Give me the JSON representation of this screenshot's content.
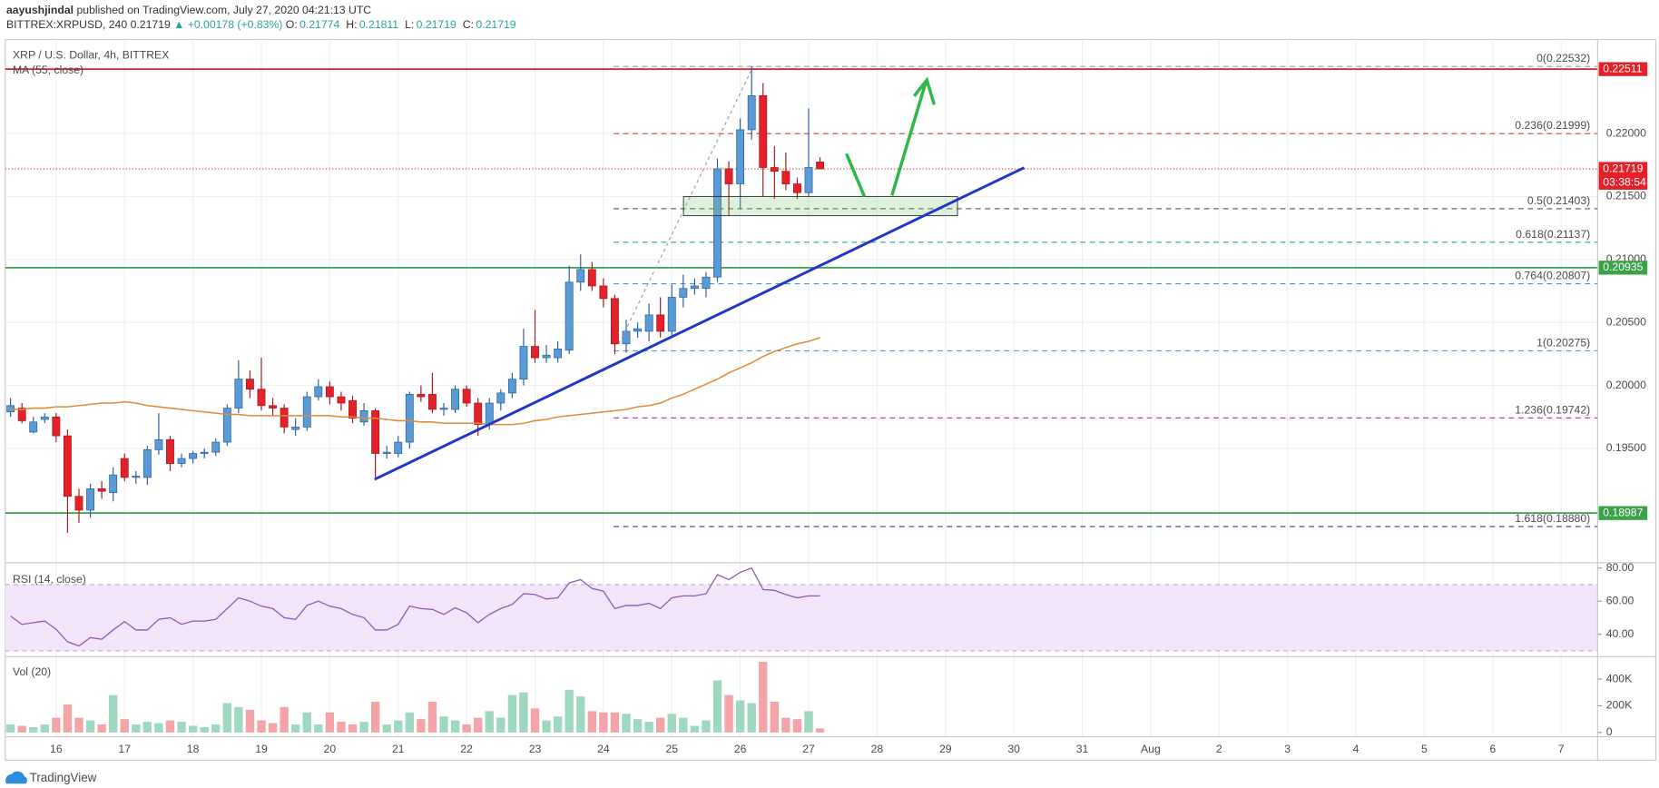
{
  "header": {
    "author": "aayushjindal",
    "published": "published on TradingView.com, July 27, 2020 04:21:13 UTC",
    "symbol": "BITTREX:XRPUSD, 240",
    "last": "0.21719",
    "change": "▲ +0.00178 (+0.83%)",
    "ohlc": [
      [
        "O:",
        "0.21774"
      ],
      [
        "H:",
        "0.21811"
      ],
      [
        "L:",
        "0.21719"
      ],
      [
        "C:",
        "0.21719"
      ]
    ]
  },
  "footer": {
    "brand": "TradingView"
  },
  "chart_data": [
    {
      "type": "candlestick",
      "title": "XRP / U.S. Dollar, 4h, BITTREX",
      "up_color": "#5b9bd5",
      "up_border": "#2a5d9b",
      "down_color": "#e4212b",
      "down_border": "#a5161d",
      "xlim": [
        -0.46,
        139.2
      ],
      "xticks": [
        {
          "value": 4,
          "label": "16"
        },
        {
          "value": 10,
          "label": "17"
        },
        {
          "value": 16,
          "label": "18"
        },
        {
          "value": 22,
          "label": "19"
        },
        {
          "value": 28,
          "label": "20"
        },
        {
          "value": 34,
          "label": "21"
        },
        {
          "value": 40,
          "label": "22"
        },
        {
          "value": 46,
          "label": "23"
        },
        {
          "value": 52,
          "label": "24"
        },
        {
          "value": 58,
          "label": "25"
        },
        {
          "value": 64,
          "label": "26"
        },
        {
          "value": 70,
          "label": "27"
        },
        {
          "value": 76,
          "label": "28"
        },
        {
          "value": 82,
          "label": "29"
        },
        {
          "value": 88,
          "label": "30"
        },
        {
          "value": 94,
          "label": "31"
        },
        {
          "value": 100,
          "label": "Aug"
        },
        {
          "value": 106,
          "label": "2"
        },
        {
          "value": 112,
          "label": "3"
        },
        {
          "value": 118,
          "label": "4"
        },
        {
          "value": 124,
          "label": "5"
        },
        {
          "value": 130,
          "label": "6"
        },
        {
          "value": 136,
          "label": "7"
        }
      ],
      "ylim": [
        0.18593,
        0.22746
      ],
      "yticks": [
        {
          "value": 0.195,
          "label": "0.19500"
        },
        {
          "value": 0.2,
          "label": "0.20000"
        },
        {
          "value": 0.205,
          "label": "0.20500"
        },
        {
          "value": 0.21,
          "label": "0.21000"
        },
        {
          "value": 0.215,
          "label": "0.21500"
        },
        {
          "value": 0.22,
          "label": "0.22000"
        }
      ],
      "grid": true,
      "open": [
        0.1979,
        0.1982,
        0.1963,
        0.1973,
        0.1975,
        0.196,
        0.1912,
        0.1901,
        0.1918,
        0.1915,
        0.1942,
        0.1927,
        0.1927,
        0.1949,
        0.1957,
        0.1938,
        0.1942,
        0.1946,
        0.1947,
        0.1955,
        0.1982,
        0.2005,
        0.1997,
        0.1984,
        0.1982,
        0.1965,
        0.1967,
        0.1991,
        0.1999,
        0.1991,
        0.1988,
        0.1971,
        0.198,
        0.1946,
        0.1946,
        0.1955,
        0.1993,
        0.1993,
        0.1981,
        0.1981,
        0.1997,
        0.1986,
        0.1969,
        0.1986,
        0.1994,
        0.2005,
        0.2031,
        0.2022,
        0.2022,
        0.2028,
        0.2082,
        0.2092,
        0.2079,
        0.2069,
        0.2033,
        0.2043,
        0.2043,
        0.2056,
        0.2043,
        0.207,
        0.2077,
        0.2077,
        0.2086,
        0.2172,
        0.216,
        0.2203,
        0.223,
        0.2173,
        0.217,
        0.216,
        0.2153,
        0.21774
      ],
      "high": [
        0.199,
        0.1986,
        0.1975,
        0.1978,
        0.1978,
        0.1965,
        0.1918,
        0.1922,
        0.1924,
        0.1935,
        0.1946,
        0.1932,
        0.1952,
        0.1978,
        0.196,
        0.1946,
        0.1948,
        0.195,
        0.1958,
        0.1985,
        0.202,
        0.2012,
        0.2022,
        0.199,
        0.1985,
        0.1974,
        0.1995,
        0.2005,
        0.2003,
        0.1995,
        0.1992,
        0.1986,
        0.1982,
        0.1952,
        0.196,
        0.1995,
        0.2,
        0.201,
        0.1986,
        0.2,
        0.2,
        0.199,
        0.199,
        0.1997,
        0.201,
        0.2045,
        0.206,
        0.2032,
        0.2035,
        0.2095,
        0.2104,
        0.2098,
        0.2085,
        0.2072,
        0.2052,
        0.205,
        0.2065,
        0.207,
        0.208,
        0.2088,
        0.2085,
        0.209,
        0.218,
        0.2178,
        0.2212,
        0.2253,
        0.224,
        0.219,
        0.2185,
        0.2165,
        0.222,
        0.21811
      ],
      "low": [
        0.1975,
        0.197,
        0.1962,
        0.197,
        0.1955,
        0.1883,
        0.1891,
        0.1895,
        0.191,
        0.1908,
        0.1924,
        0.1922,
        0.1921,
        0.1945,
        0.1932,
        0.1935,
        0.1938,
        0.1942,
        0.1944,
        0.1952,
        0.1978,
        0.199,
        0.198,
        0.1976,
        0.1962,
        0.196,
        0.1964,
        0.1988,
        0.1985,
        0.198,
        0.197,
        0.1968,
        0.1927,
        0.1942,
        0.1943,
        0.195,
        0.1987,
        0.1978,
        0.1976,
        0.1978,
        0.1983,
        0.196,
        0.1965,
        0.198,
        0.199,
        0.2,
        0.2018,
        0.2018,
        0.2018,
        0.2025,
        0.2075,
        0.2075,
        0.2062,
        0.2025,
        0.2026,
        0.2038,
        0.2035,
        0.2038,
        0.204,
        0.2062,
        0.2072,
        0.207,
        0.2082,
        0.2135,
        0.214,
        0.2195,
        0.215,
        0.2148,
        0.2155,
        0.2148,
        0.215,
        0.21719
      ],
      "close": [
        0.1984,
        0.1972,
        0.1971,
        0.1975,
        0.196,
        0.1912,
        0.1901,
        0.1918,
        0.1916,
        0.1929,
        0.1927,
        0.1928,
        0.1949,
        0.1957,
        0.1938,
        0.1942,
        0.1946,
        0.1947,
        0.1955,
        0.1982,
        0.2005,
        0.1997,
        0.1984,
        0.1982,
        0.1967,
        0.1967,
        0.1991,
        0.1999,
        0.1991,
        0.1986,
        0.1974,
        0.198,
        0.1946,
        0.1947,
        0.1955,
        0.1993,
        0.1991,
        0.1981,
        0.1982,
        0.1997,
        0.1986,
        0.1969,
        0.1986,
        0.1994,
        0.2005,
        0.2031,
        0.2022,
        0.2024,
        0.2029,
        0.2082,
        0.2092,
        0.2079,
        0.2069,
        0.2033,
        0.2043,
        0.2045,
        0.2056,
        0.2043,
        0.207,
        0.2077,
        0.2079,
        0.2086,
        0.2172,
        0.216,
        0.2203,
        0.223,
        0.2173,
        0.217,
        0.216,
        0.2153,
        0.2173,
        0.21719
      ],
      "series": [
        {
          "name": "MA (55, close)",
          "color": "#e48a35",
          "values": [
            0.1981,
            0.1981,
            0.1982,
            0.1982,
            0.1983,
            0.1983,
            0.1984,
            0.1985,
            0.1986,
            0.1986,
            0.1987,
            0.1986,
            0.1984,
            0.1983,
            0.1982,
            0.1981,
            0.198,
            0.1979,
            0.1978,
            0.1977,
            0.1977,
            0.1976,
            0.1976,
            0.1976,
            0.1976,
            0.1976,
            0.1976,
            0.1976,
            0.1976,
            0.1975,
            0.1975,
            0.1974,
            0.1974,
            0.1973,
            0.1972,
            0.1972,
            0.1971,
            0.1971,
            0.197,
            0.197,
            0.197,
            0.197,
            0.1969,
            0.1969,
            0.1969,
            0.197,
            0.1972,
            0.1973,
            0.1975,
            0.1976,
            0.1977,
            0.1978,
            0.1979,
            0.198,
            0.1981,
            0.1983,
            0.1984,
            0.1986,
            0.199,
            0.1993,
            0.1997,
            0.2001,
            0.2005,
            0.201,
            0.2014,
            0.2018,
            0.2023,
            0.2027,
            0.203,
            0.2033,
            0.2035,
            0.2038
          ]
        }
      ],
      "levels": [
        {
          "value": 0.22511,
          "label": "0.22511",
          "color": "#e4212b"
        },
        {
          "value": 0.20935,
          "label": "0.20935",
          "color": "#3aa34a"
        },
        {
          "value": 0.18987,
          "label": "0.18987",
          "color": "#3aa34a"
        }
      ],
      "fib": [
        {
          "value": 0.22532,
          "label": "0(0.22532)",
          "color": "#9e9e9e"
        },
        {
          "value": 0.21999,
          "label": "0.236(0.21999)",
          "color": "#e53935"
        },
        {
          "value": 0.21403,
          "label": "0.5(0.21403)",
          "color": "#666666"
        },
        {
          "value": 0.21137,
          "label": "0.618(0.21137)",
          "color": "#26a69a"
        },
        {
          "value": 0.20807,
          "label": "0.764(0.20807)",
          "color": "#4a95cf"
        },
        {
          "value": 0.20275,
          "label": "1(0.20275)",
          "color": "#4aa3c8"
        },
        {
          "value": 0.19742,
          "label": "1.236(0.19742)",
          "color": "#ab47bc"
        },
        {
          "value": 0.1888,
          "label": "1.618(0.18880)",
          "color": "#3f51b5"
        }
      ],
      "current": {
        "value": 0.21719,
        "label": "0.21719",
        "countdown": "03:38:54",
        "color": "#e4212b"
      }
    },
    {
      "type": "line",
      "title": "RSI (14, close)",
      "color": "#8e5ab5",
      "band": [
        30,
        70
      ],
      "band_color": "#f3e6fb",
      "ylim": [
        26.5,
        83.2
      ],
      "yticks": [
        {
          "value": 40,
          "label": "40.00"
        },
        {
          "value": 60,
          "label": "60.00"
        },
        {
          "value": 80,
          "label": "80.00"
        }
      ],
      "values": [
        51,
        46,
        47,
        48,
        43,
        35.5,
        33,
        38,
        37,
        42.6,
        47.7,
        42.6,
        42.6,
        49,
        50,
        46,
        48,
        48,
        49,
        55.5,
        62,
        60,
        57,
        55.5,
        50,
        49,
        57.4,
        60,
        57,
        55.5,
        52,
        50,
        42.6,
        42.6,
        46,
        57,
        55.5,
        55,
        52,
        56,
        53,
        47,
        52,
        55.5,
        58,
        64.5,
        64,
        61.3,
        62,
        71,
        73,
        67.7,
        66,
        55.5,
        57.4,
        57.4,
        58.7,
        55.5,
        62,
        63.2,
        63.2,
        64.5,
        76,
        73,
        77.4,
        80,
        67,
        66.5,
        64,
        62,
        63.2,
        63.2
      ]
    },
    {
      "type": "bar",
      "title": "Vol (20)",
      "up_color": "#9fd8c1",
      "down_color": "#f4a3a6",
      "ylim": [
        -32000,
        568000
      ],
      "yticks": [
        0,
        {
          "value": 200000,
          "label": "200K"
        },
        {
          "value": 400000,
          "label": "400K"
        }
      ],
      "values": [
        60000,
        50000,
        40000,
        60000,
        110000,
        210000,
        110000,
        90000,
        60000,
        280000,
        100000,
        60000,
        80000,
        70000,
        90000,
        80000,
        50000,
        40000,
        60000,
        220000,
        190000,
        170000,
        90000,
        70000,
        190000,
        60000,
        150000,
        60000,
        150000,
        80000,
        60000,
        80000,
        230000,
        60000,
        90000,
        150000,
        100000,
        230000,
        120000,
        90000,
        60000,
        110000,
        160000,
        110000,
        280000,
        300000,
        180000,
        90000,
        120000,
        320000,
        270000,
        160000,
        150000,
        150000,
        140000,
        100000,
        80000,
        110000,
        140000,
        110000,
        50000,
        90000,
        390000,
        280000,
        240000,
        220000,
        530000,
        230000,
        110000,
        100000,
        160000,
        30000
      ]
    }
  ]
}
